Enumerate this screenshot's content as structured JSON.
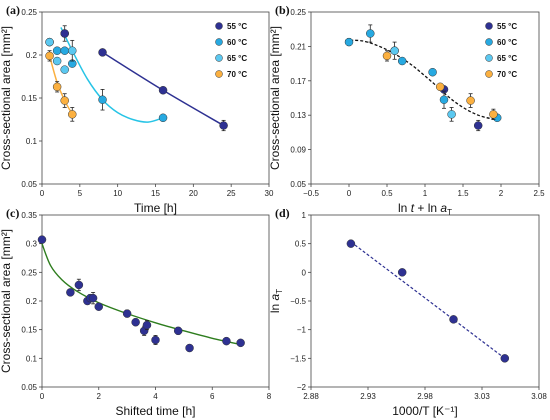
{
  "colors": {
    "c55": "#2e3192",
    "c60": "#27a9e1",
    "c65": "#5bc8f0",
    "c70": "#fbb040",
    "fit55": "#2e3192",
    "fit60": "#27c4e6",
    "fit65": "#27c4e6",
    "fit70": "#fbb040",
    "fitB": "#111111",
    "fitC": "#2e7d1e",
    "fitD": "#2e3192"
  },
  "chart_data": [
    {
      "panel": "(a)",
      "type": "scatter",
      "xlabel": "Time [h]",
      "ylabel": "Cross-sectional area [mm²]",
      "xlim": [
        0,
        30
      ],
      "ylim": [
        0.05,
        0.25
      ],
      "xticks": [
        0,
        5,
        10,
        15,
        20,
        25,
        30
      ],
      "yticks": [
        0.05,
        0.1,
        0.15,
        0.2,
        0.25
      ],
      "xtick_labels": [
        "0",
        "5",
        "10",
        "15",
        "20",
        "25",
        "30"
      ],
      "ytick_labels": [
        "0.05",
        "0.1",
        "0.15",
        "0.2",
        "0.25"
      ],
      "legend": [
        "55 °C",
        "60 °C",
        "65 °C",
        "70 °C"
      ],
      "legend_position": "top-right",
      "series": [
        {
          "name": "55 °C",
          "colorKey": "c55",
          "fitKey": "fit55",
          "x": [
            8,
            16,
            24
          ],
          "y": [
            0.203,
            0.159,
            0.118
          ],
          "err": [
            0,
            0,
            0.006
          ],
          "fit": [
            [
              8,
              0.203
            ],
            [
              16,
              0.159
            ],
            [
              24,
              0.118
            ]
          ]
        },
        {
          "name": "60 °C",
          "colorKey": "c60",
          "fitKey": "fit60",
          "x": [
            1,
            2,
            3,
            4,
            8,
            16
          ],
          "y": [
            0.215,
            0.205,
            0.205,
            0.19,
            0.148,
            0.127
          ],
          "err": [
            0,
            0,
            0,
            0,
            0.012,
            0
          ],
          "fit": [
            [
              2.5,
              0.232
            ],
            [
              4,
              0.205
            ],
            [
              6,
              0.172
            ],
            [
              8,
              0.148
            ],
            [
              10,
              0.133
            ],
            [
              12,
              0.125
            ],
            [
              14,
              0.122
            ],
            [
              16,
              0.127
            ]
          ]
        },
        {
          "name": "65 °C",
          "colorKey": "c65",
          "fitKey": "fit65",
          "x": [
            1,
            2,
            3,
            4
          ],
          "y": [
            0.215,
            0.193,
            0.183,
            0.205
          ],
          "err": [
            0,
            0,
            0,
            0.012
          ],
          "fit": []
        },
        {
          "name": "70 °C",
          "colorKey": "c70",
          "fitKey": "fit70",
          "x": [
            1,
            2,
            3,
            4
          ],
          "y": [
            0.199,
            0.163,
            0.147,
            0.131
          ],
          "err": [
            0.006,
            0.006,
            0.008,
            0.008
          ],
          "fit": [
            [
              1,
              0.199
            ],
            [
              2,
              0.168
            ],
            [
              3,
              0.147
            ],
            [
              4,
              0.131
            ]
          ]
        }
      ],
      "extra_points": [
        {
          "colorKey": "c60",
          "x": 3,
          "y": 0.225,
          "err": 0.009
        },
        {
          "colorKey": "c55",
          "x": 3,
          "y": 0.225,
          "err": 0
        }
      ]
    },
    {
      "panel": "(b)",
      "type": "scatter",
      "xlabel": "ln t + ln aT",
      "ylabel": "Cross-sectional area [mm²]",
      "xlim": [
        -0.5,
        2.5
      ],
      "ylim": [
        0.05,
        0.25
      ],
      "xticks": [
        -0.5,
        0,
        0.5,
        1,
        1.5,
        2,
        2.5
      ],
      "yticks": [
        0.05,
        0.09,
        0.13,
        0.17,
        0.21,
        0.25
      ],
      "xtick_labels": [
        "−0.5",
        "0",
        "0.5",
        "1",
        "1.5",
        "2",
        "2.5"
      ],
      "ytick_labels": [
        "0.05",
        "0.09",
        "0.13",
        "0.17",
        "0.21",
        "0.25"
      ],
      "legend": [
        "55 °C",
        "60 °C",
        "65 °C",
        "70 °C"
      ],
      "legend_position": "top-right",
      "series": [
        {
          "name": "55 °C",
          "colorKey": "c55",
          "x": [
            0.6,
            1.25,
            1.7
          ],
          "y": [
            0.205,
            0.16,
            0.118
          ],
          "err": [
            0,
            0,
            0.006
          ]
        },
        {
          "name": "60 °C",
          "colorKey": "c60",
          "x": [
            0,
            0.28,
            0.7,
            1.1,
            1.25,
            1.95
          ],
          "y": [
            0.215,
            0.225,
            0.193,
            0.18,
            0.148,
            0.127
          ],
          "err": [
            0.004,
            0.01,
            0,
            0,
            0.01,
            0
          ]
        },
        {
          "name": "65 °C",
          "colorKey": "c65",
          "x": [
            0.6,
            1.35
          ],
          "y": [
            0.205,
            0.131
          ],
          "err": [
            0.01,
            0.008
          ]
        },
        {
          "name": "70 °C",
          "colorKey": "c70",
          "x": [
            0.5,
            1.2,
            1.6,
            1.9
          ],
          "y": [
            0.199,
            0.163,
            0.147,
            0.131
          ],
          "err": [
            0.006,
            0,
            0.008,
            0.006
          ]
        }
      ],
      "fit": [
        [
          -0.05,
          0.217
        ],
        [
          0.2,
          0.216
        ],
        [
          0.5,
          0.206
        ],
        [
          0.8,
          0.19
        ],
        [
          1.1,
          0.168
        ],
        [
          1.4,
          0.145
        ],
        [
          1.7,
          0.13
        ],
        [
          2.0,
          0.124
        ]
      ]
    },
    {
      "panel": "(c)",
      "type": "scatter",
      "xlabel": "Shifted time [h]",
      "ylabel": "Cross-sectional area [mm²]",
      "xlim": [
        0,
        8
      ],
      "ylim": [
        0.05,
        0.35
      ],
      "xticks": [
        0,
        2,
        4,
        6,
        8
      ],
      "yticks": [
        0.05,
        0.1,
        0.15,
        0.2,
        0.25,
        0.3,
        0.35
      ],
      "xtick_labels": [
        "0",
        "2",
        "4",
        "6",
        "8"
      ],
      "ytick_labels": [
        "0.05",
        "0.1",
        "0.15",
        "0.2",
        "0.25",
        "0.3",
        "0.35"
      ],
      "series": [
        {
          "name": "",
          "colorKey": "c55",
          "x": [
            0,
            1,
            1.3,
            1.6,
            1.7,
            1.8,
            2,
            3,
            3.3,
            3.6,
            3.7,
            4,
            4.8,
            5.2,
            6.5,
            7
          ],
          "y": [
            0.307,
            0.215,
            0.228,
            0.2,
            0.205,
            0.205,
            0.19,
            0.178,
            0.163,
            0.148,
            0.158,
            0.132,
            0.148,
            0.118,
            0.13,
            0.127
          ],
          "err": [
            0,
            0,
            0.01,
            0,
            0.006,
            0.01,
            0,
            0.006,
            0.006,
            0.008,
            0.008,
            0.008,
            0.006,
            0,
            0,
            0
          ]
        }
      ],
      "fit": [
        [
          0,
          0.3
        ],
        [
          0.3,
          0.262
        ],
        [
          0.7,
          0.237
        ],
        [
          1.2,
          0.218
        ],
        [
          2,
          0.197
        ],
        [
          3,
          0.178
        ],
        [
          4,
          0.162
        ],
        [
          5,
          0.148
        ],
        [
          6,
          0.135
        ],
        [
          7.1,
          0.123
        ]
      ]
    },
    {
      "panel": "(d)",
      "type": "scatter",
      "xlabel": "1000/T [K⁻¹]",
      "ylabel": "ln aT",
      "xlim": [
        2.88,
        3.08
      ],
      "ylim": [
        -2,
        1
      ],
      "xticks": [
        2.88,
        2.93,
        2.98,
        3.03,
        3.08
      ],
      "yticks": [
        -2,
        -1.5,
        -1,
        -0.5,
        0,
        0.5,
        1
      ],
      "xtick_labels": [
        "2.88",
        "2.93",
        "2.98",
        "3.03",
        "3.08"
      ],
      "ytick_labels": [
        "−2",
        "−1.5",
        "−1",
        "−0.5",
        "0",
        "0.5",
        "1"
      ],
      "series": [
        {
          "name": "",
          "colorKey": "c55",
          "x": [
            2.915,
            2.96,
            3.005,
            3.05
          ],
          "y": [
            0.5,
            0,
            -0.82,
            -1.5
          ],
          "err": [
            0,
            0,
            0,
            0
          ]
        }
      ],
      "fit": [
        [
          2.915,
          0.53
        ],
        [
          3.05,
          -1.5
        ]
      ]
    }
  ]
}
